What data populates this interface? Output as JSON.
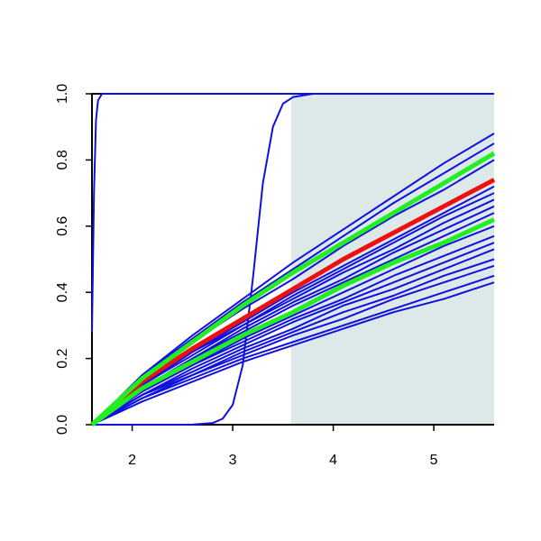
{
  "chart_data": {
    "type": "line",
    "x": [
      1.6,
      2.1,
      2.6,
      3.1,
      3.6,
      4.1,
      4.6,
      5.1,
      5.6
    ],
    "xlim": [
      1.6,
      5.6
    ],
    "xticks": [
      2,
      3,
      4,
      5
    ],
    "ylim": [
      0,
      1
    ],
    "yticks": [
      {
        "value": 0,
        "label": "0.0"
      },
      0.2,
      0.4,
      0.6,
      0.8,
      {
        "value": 1,
        "label": "1.0"
      }
    ],
    "shaded_region": {
      "xlim": [
        3.58,
        5.6
      ],
      "color": "#dde9e9"
    },
    "series": [
      {
        "color": "#1010e0",
        "width": 2,
        "values": [
          0,
          0.15,
          0.27,
          0.38,
          0.49,
          0.59,
          0.69,
          0.79,
          0.88
        ]
      },
      {
        "color": "#1010e0",
        "width": 2,
        "values": [
          0,
          0.15,
          0.26,
          0.37,
          0.47,
          0.57,
          0.67,
          0.76,
          0.85
        ]
      },
      {
        "color": "#1010e0",
        "width": 2,
        "values": [
          0,
          0.14,
          0.25,
          0.35,
          0.44,
          0.54,
          0.63,
          0.71,
          0.8
        ]
      },
      {
        "color": "#1010e0",
        "width": 2,
        "values": [
          0,
          0.12,
          0.22,
          0.31,
          0.4,
          0.48,
          0.56,
          0.64,
          0.72
        ]
      },
      {
        "color": "#1010e0",
        "width": 2,
        "values": [
          0,
          0.12,
          0.22,
          0.3,
          0.39,
          0.47,
          0.55,
          0.63,
          0.7
        ]
      },
      {
        "color": "#1010e0",
        "width": 2,
        "values": [
          0,
          0.12,
          0.21,
          0.3,
          0.38,
          0.46,
          0.53,
          0.61,
          0.68
        ]
      },
      {
        "color": "#1010e0",
        "width": 2,
        "values": [
          0,
          0.11,
          0.2,
          0.29,
          0.37,
          0.44,
          0.52,
          0.59,
          0.66
        ]
      },
      {
        "color": "#1010e0",
        "width": 2,
        "values": [
          0,
          0.11,
          0.2,
          0.28,
          0.36,
          0.43,
          0.5,
          0.57,
          0.64
        ]
      },
      {
        "color": "#1010e0",
        "width": 2,
        "values": [
          0,
          0.1,
          0.18,
          0.26,
          0.33,
          0.4,
          0.47,
          0.54,
          0.6
        ]
      },
      {
        "color": "#1010e0",
        "width": 2,
        "values": [
          0,
          0.1,
          0.18,
          0.25,
          0.32,
          0.38,
          0.45,
          0.51,
          0.57
        ]
      },
      {
        "color": "#1010e0",
        "width": 2,
        "values": [
          0,
          0.09,
          0.17,
          0.24,
          0.31,
          0.37,
          0.43,
          0.49,
          0.55
        ]
      },
      {
        "color": "#1010e0",
        "width": 2,
        "values": [
          0,
          0.09,
          0.16,
          0.23,
          0.29,
          0.36,
          0.41,
          0.47,
          0.53
        ]
      },
      {
        "color": "#1010e0",
        "width": 2,
        "values": [
          0,
          0.09,
          0.15,
          0.22,
          0.28,
          0.34,
          0.39,
          0.45,
          0.5
        ]
      },
      {
        "color": "#1010e0",
        "width": 2,
        "values": [
          0,
          0.08,
          0.15,
          0.21,
          0.27,
          0.32,
          0.38,
          0.43,
          0.48
        ]
      },
      {
        "color": "#1010e0",
        "width": 2,
        "values": [
          0,
          0.08,
          0.14,
          0.2,
          0.25,
          0.3,
          0.35,
          0.4,
          0.45
        ]
      },
      {
        "color": "#1010e0",
        "width": 2,
        "values": [
          0,
          0.07,
          0.13,
          0.19,
          0.24,
          0.29,
          0.34,
          0.38,
          0.43
        ]
      },
      {
        "color": "#1010e0",
        "width": 2,
        "x": [
          1.6,
          1.62,
          1.64,
          1.66,
          1.7,
          1.8,
          5.6
        ],
        "values": [
          0.28,
          0.7,
          0.92,
          0.98,
          1.0,
          1.0,
          1.0
        ]
      },
      {
        "color": "#1010e0",
        "width": 2,
        "x": [
          1.6,
          2.4,
          2.6,
          2.8,
          2.9,
          3.0,
          3.1,
          3.2,
          3.3,
          3.4,
          3.5,
          3.6,
          3.8,
          5.6
        ],
        "values": [
          0,
          0,
          0.0004,
          0.005,
          0.018,
          0.06,
          0.18,
          0.44,
          0.73,
          0.9,
          0.97,
          0.99,
          1.0,
          1.0
        ]
      },
      {
        "color": "#ee1010",
        "width": 5,
        "values": [
          0,
          0.13,
          0.23,
          0.32,
          0.41,
          0.5,
          0.58,
          0.66,
          0.74
        ]
      },
      {
        "color": "#22ee22",
        "width": 5,
        "values": [
          0,
          0.14,
          0.25,
          0.36,
          0.46,
          0.55,
          0.64,
          0.73,
          0.82
        ]
      },
      {
        "color": "#22ee22",
        "width": 5,
        "values": [
          0,
          0.11,
          0.19,
          0.27,
          0.34,
          0.42,
          0.49,
          0.55,
          0.62
        ]
      }
    ]
  }
}
